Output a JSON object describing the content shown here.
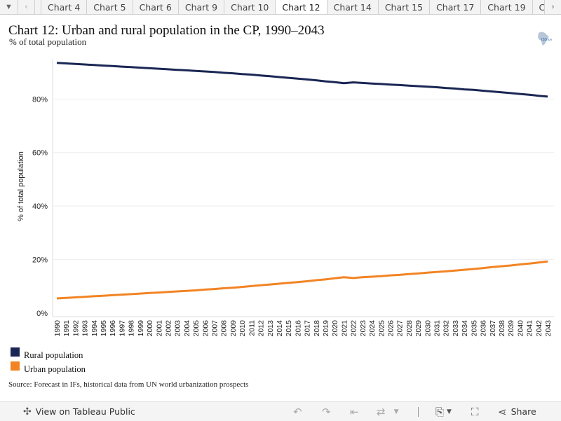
{
  "tabbar": {
    "menu_icon": "caret-down-icon",
    "prev_icon": "chevron-left-icon",
    "next_icon": "chevron-right-icon",
    "tabs": [
      "Chart 4",
      "Chart 5",
      "Chart 6",
      "Chart 9",
      "Chart 10",
      "Chart 12",
      "Chart 14",
      "Chart 15",
      "Chart 17",
      "Chart 19",
      "Chart"
    ],
    "active_index": 5
  },
  "header": {
    "title": "Chart 12: Urban and rural population in the CP, 1990–2043",
    "subtitle": "% of total population",
    "logo_text": "ISS · AFI"
  },
  "colors": {
    "rural": "#1a2754",
    "urban": "#f28424",
    "grid": "#eeeeee"
  },
  "chart_data": {
    "type": "line",
    "title": "Chart 12: Urban and rural population in the CP, 1990–2043",
    "ylabel": "% of total population",
    "xlabel": "",
    "ylim": [
      0,
      95
    ],
    "yticks": [
      "0%",
      "20%",
      "40%",
      "60%",
      "80%"
    ],
    "ytick_values": [
      0,
      20,
      40,
      60,
      80
    ],
    "x": [
      1990,
      1991,
      1992,
      1993,
      1994,
      1995,
      1996,
      1997,
      1998,
      1999,
      2000,
      2001,
      2002,
      2003,
      2004,
      2005,
      2006,
      2007,
      2008,
      2009,
      2010,
      2011,
      2012,
      2013,
      2014,
      2015,
      2016,
      2017,
      2018,
      2019,
      2020,
      2021,
      2022,
      2023,
      2024,
      2025,
      2026,
      2027,
      2028,
      2029,
      2030,
      2031,
      2032,
      2033,
      2034,
      2035,
      2036,
      2037,
      2038,
      2039,
      2040,
      2041,
      2042,
      2043
    ],
    "series": [
      {
        "name": "Rural population",
        "values": [
          93.5,
          93.3,
          93.1,
          92.9,
          92.7,
          92.5,
          92.3,
          92.1,
          91.9,
          91.7,
          91.5,
          91.3,
          91.1,
          90.9,
          90.7,
          90.5,
          90.3,
          90.1,
          89.8,
          89.6,
          89.3,
          89.1,
          88.8,
          88.5,
          88.2,
          87.9,
          87.6,
          87.3,
          87.0,
          86.6,
          86.3,
          85.9,
          86.2,
          86.0,
          85.8,
          85.6,
          85.4,
          85.2,
          85.0,
          84.8,
          84.6,
          84.4,
          84.1,
          83.9,
          83.6,
          83.4,
          83.1,
          82.8,
          82.5,
          82.2,
          81.9,
          81.6,
          81.2,
          80.9
        ]
      },
      {
        "name": "Urban population",
        "values": [
          5.5,
          5.7,
          5.9,
          6.1,
          6.3,
          6.5,
          6.7,
          6.9,
          7.1,
          7.3,
          7.5,
          7.7,
          7.9,
          8.1,
          8.3,
          8.5,
          8.8,
          9.0,
          9.3,
          9.5,
          9.8,
          10.1,
          10.4,
          10.7,
          11.0,
          11.3,
          11.6,
          11.9,
          12.3,
          12.6,
          13.0,
          13.4,
          13.1,
          13.4,
          13.6,
          13.8,
          14.1,
          14.3,
          14.6,
          14.8,
          15.1,
          15.4,
          15.6,
          15.9,
          16.2,
          16.5,
          16.8,
          17.2,
          17.5,
          17.8,
          18.2,
          18.5,
          18.9,
          19.3
        ]
      }
    ],
    "legend": [
      "Rural population",
      "Urban population"
    ],
    "legend_position": "bottom-left",
    "grid": true
  },
  "footer": {
    "source": "Source: Forecast in IFs, historical data from UN world urbanization prospects"
  },
  "toolbar": {
    "view_label": "View on Tableau Public",
    "share_label": "Share",
    "icons": [
      "undo-icon",
      "redo-icon",
      "revert-icon",
      "refresh-icon",
      "download-icon",
      "fullscreen-icon",
      "share-icon"
    ]
  }
}
